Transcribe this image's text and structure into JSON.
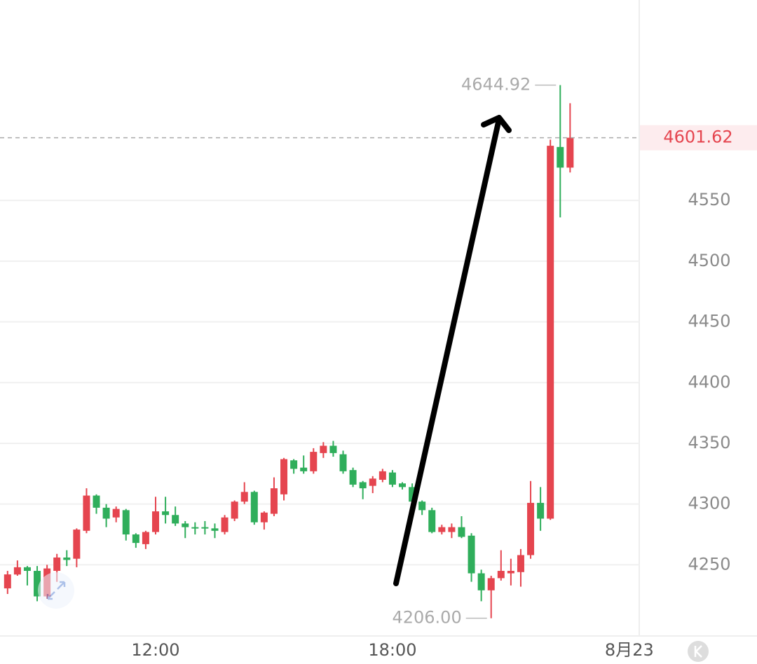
{
  "chart_data": {
    "type": "candlestick",
    "categories": [
      null,
      null,
      null,
      null,
      null,
      null,
      null,
      null,
      null,
      null,
      null,
      null,
      null,
      null,
      null,
      "12:00",
      null,
      null,
      null,
      null,
      null,
      null,
      null,
      null,
      null,
      null,
      null,
      null,
      null,
      null,
      null,
      null,
      null,
      null,
      null,
      null,
      null,
      null,
      null,
      "18:00",
      null,
      null,
      null,
      null,
      null,
      null,
      null,
      null,
      null,
      null,
      null,
      null,
      null,
      null,
      null,
      null,
      null,
      null,
      null,
      null,
      null,
      null,
      null,
      "8月23"
    ],
    "open": [
      4230.6,
      4242,
      4248,
      4245,
      4224,
      4245,
      4256,
      4255,
      4278,
      4307,
      4297,
      4289,
      4295,
      4275,
      4267,
      4277,
      4294,
      4291,
      4284,
      4281,
      4281,
      4280,
      4277,
      4288,
      4302,
      4310,
      4285,
      4292,
      4308,
      4336,
      4330,
      4327,
      4342,
      4348,
      4341,
      4328,
      4318,
      4315,
      4320,
      4326,
      4317,
      4314,
      4302,
      4295,
      4277,
      4277,
      4281,
      4274,
      4243,
      4229,
      4239,
      4243,
      4244,
      4258,
      4301,
      4288,
      4594,
      4577,
      null,
      null,
      null,
      null,
      null,
      null
    ],
    "high": [
      4245,
      4253.6,
      4249,
      4249,
      4250,
      4259,
      4262,
      4280,
      4313,
      4308,
      4300,
      4298,
      4296,
      4276,
      4278,
      4306,
      4306,
      4298,
      4286,
      4285,
      4286,
      4284,
      4291,
      4303,
      4318,
      4311,
      4294,
      4322,
      4338,
      4337,
      4340,
      4346,
      4351,
      4352,
      4344,
      4330,
      4319,
      4323,
      4329,
      4328,
      4318,
      4317,
      4303,
      4297,
      4283,
      4284,
      4290,
      4276,
      4246,
      4241,
      4262,
      4255,
      4263,
      4319,
      4314,
      4600,
      4644.92,
      4630,
      null,
      null,
      null,
      null,
      null,
      null
    ],
    "low": [
      4226,
      4241,
      4233,
      4220,
      4222,
      4236,
      4249,
      4248,
      4276,
      4292,
      4281,
      4285,
      4270,
      4264,
      4263,
      4275,
      4284,
      4282,
      4272,
      4275,
      4275,
      4272,
      4275,
      4286,
      4300,
      4283,
      4279,
      4290,
      4303,
      4325,
      4325,
      4325,
      4338,
      4339,
      4325,
      4314,
      4304,
      4309,
      4318,
      4314,
      4312,
      4300,
      4291,
      4276,
      4275,
      4272,
      4272,
      4236,
      4220,
      4206,
      4237,
      4233,
      4232,
      4255,
      4278,
      4287,
      4536,
      4573,
      null,
      null,
      null,
      null,
      null,
      null
    ],
    "close": [
      4242.1,
      4248,
      4245,
      4224,
      4247,
      4256,
      4254,
      4279,
      4307,
      4297,
      4288,
      4296,
      4275,
      4268,
      4277,
      4294,
      4291,
      4284,
      4281,
      4280,
      4280,
      4278,
      4289,
      4302,
      4310,
      4285,
      4293,
      4313,
      4337,
      4329,
      4327,
      4343,
      4348,
      4342,
      4327,
      4316,
      4313,
      4321,
      4327,
      4316,
      4314,
      4302,
      4295,
      4277,
      4281,
      4281,
      4273,
      4243,
      4229,
      4239,
      4245,
      4245,
      4258,
      4301,
      4288,
      4595,
      4577,
      4601.62,
      null,
      null,
      null,
      null,
      null,
      null
    ],
    "up_color": "#e5454f",
    "down_color": "#2fae5b",
    "ylim": [
      4191.4,
      4715
    ],
    "yticks": [
      4250,
      4300,
      4350,
      4400,
      4450,
      4500,
      4550
    ],
    "grid": true,
    "max_marker": {
      "value": 4644.92,
      "label": "4644.92"
    },
    "min_marker": {
      "value": 4206,
      "label": "4206.00"
    },
    "last_price": {
      "value": 4601.62,
      "label": "4601.62"
    }
  }
}
